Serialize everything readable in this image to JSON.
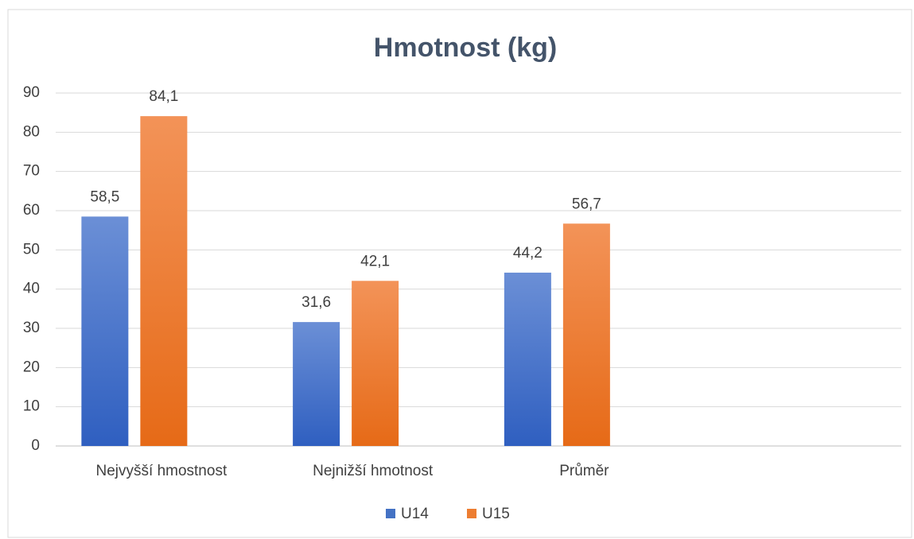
{
  "chart_data": {
    "type": "bar",
    "title": "Hmotnost (kg)",
    "categories": [
      "Nejvyšší hmostnost",
      "Nejnižší hmotnost",
      "Průměr",
      null
    ],
    "series": [
      {
        "name": "U14",
        "color": "#4472c4",
        "values": [
          58.5,
          31.6,
          44.2,
          null
        ],
        "value_labels": [
          "58,5",
          "31,6",
          "44,2",
          null
        ]
      },
      {
        "name": "U15",
        "color": "#ed7d31",
        "values": [
          84.1,
          42.1,
          56.7,
          null
        ],
        "value_labels": [
          "84,1",
          "42,1",
          "56,7",
          null
        ]
      }
    ],
    "ylim": [
      0,
      90
    ],
    "yticks": [
      0,
      10,
      20,
      30,
      40,
      50,
      60,
      70,
      80,
      90
    ],
    "grid": true,
    "legend": "bottom"
  }
}
